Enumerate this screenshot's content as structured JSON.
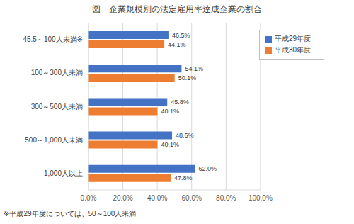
{
  "chart_data": {
    "type": "bar",
    "title": "図　企業規模別の法定雇用率達成企業の割合",
    "orientation": "horizontal",
    "categories": [
      "45.5～100人未満※",
      "100～300人未満",
      "300～500人未満",
      "500～1,000人未満",
      "1,000人以上"
    ],
    "series": [
      {
        "name": "平成29年度",
        "color": "#4472c4",
        "values": [
          46.5,
          54.1,
          45.8,
          48.6,
          62.0
        ],
        "value_labels": [
          "46.5%",
          "54.1%",
          "45.8%",
          "48.6%",
          "62.0%"
        ]
      },
      {
        "name": "平成30年度",
        "color": "#ed7d31",
        "values": [
          44.1,
          50.1,
          40.1,
          40.1,
          47.8
        ],
        "value_labels": [
          "44.1%",
          "50.1%",
          "40.1%",
          "40.1%",
          "47.8%"
        ]
      }
    ],
    "xlim": [
      0,
      100
    ],
    "xticks": [
      {
        "value": 0,
        "label": "0.0%"
      },
      {
        "value": 20,
        "label": "20.0%"
      },
      {
        "value": 40,
        "label": "40.0%"
      },
      {
        "value": 60,
        "label": "60.0%"
      },
      {
        "value": 80,
        "label": "80.0%"
      },
      {
        "value": 100,
        "label": "100.0%"
      }
    ],
    "grid": true,
    "legend": "upper right",
    "data_labels": true,
    "annotation": "※平成29年度については、50～100人未満"
  }
}
